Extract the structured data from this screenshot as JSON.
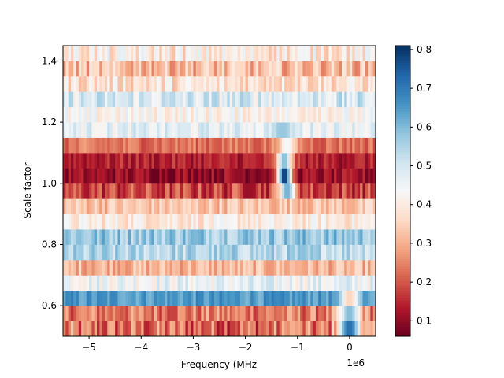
{
  "chart_data": {
    "type": "heatmap",
    "title": "",
    "xlabel": "Frequency (MHz",
    "ylabel": "Scale factor",
    "x_offset_text": "1e6",
    "xlim": [
      -5500000,
      500000
    ],
    "ylim": [
      0.5,
      1.45
    ],
    "x_ticks": [
      {
        "value": -5000000,
        "label": "−5"
      },
      {
        "value": -4000000,
        "label": "−4"
      },
      {
        "value": -3000000,
        "label": "−3"
      },
      {
        "value": -2000000,
        "label": "−2"
      },
      {
        "value": -1000000,
        "label": "−1"
      },
      {
        "value": 0,
        "label": "0"
      }
    ],
    "y_ticks": [
      {
        "value": 0.6,
        "label": "0.6"
      },
      {
        "value": 0.8,
        "label": "0.8"
      },
      {
        "value": 1.0,
        "label": "1.0"
      },
      {
        "value": 1.2,
        "label": "1.2"
      },
      {
        "value": 1.4,
        "label": "1.4"
      }
    ],
    "colormap": "RdBu",
    "colorbar": {
      "range": [
        0.06,
        0.81
      ],
      "ticks": [
        {
          "value": 0.1,
          "label": "0.1"
        },
        {
          "value": 0.2,
          "label": "0.2"
        },
        {
          "value": 0.3,
          "label": "0.3"
        },
        {
          "value": 0.4,
          "label": "0.4"
        },
        {
          "value": 0.5,
          "label": "0.5"
        },
        {
          "value": 0.6,
          "label": "0.6"
        },
        {
          "value": 0.7,
          "label": "0.7"
        },
        {
          "value": 0.8,
          "label": "0.8"
        }
      ]
    },
    "x_bins": 120,
    "rows": [
      {
        "y": 0.525,
        "base": 0.22,
        "noise": 0.11,
        "dips": [
          {
            "center": -1100000,
            "width": 150000,
            "value": 0.3
          }
        ],
        "peaks": [
          {
            "center": 0,
            "width": 220000,
            "value": 0.72
          }
        ]
      },
      {
        "y": 0.575,
        "base": 0.24,
        "noise": 0.08,
        "dips": [],
        "peaks": [
          {
            "center": 0,
            "width": 200000,
            "value": 0.6
          }
        ]
      },
      {
        "y": 0.625,
        "base": 0.65,
        "noise": 0.05,
        "dips": [
          {
            "center": 0,
            "width": 180000,
            "value": 0.35
          }
        ],
        "peaks": []
      },
      {
        "y": 0.675,
        "base": 0.46,
        "noise": 0.07,
        "dips": [],
        "peaks": []
      },
      {
        "y": 0.725,
        "base": 0.31,
        "noise": 0.06,
        "dips": [],
        "peaks": []
      },
      {
        "y": 0.775,
        "base": 0.54,
        "noise": 0.07,
        "dips": [],
        "peaks": []
      },
      {
        "y": 0.825,
        "base": 0.58,
        "noise": 0.07,
        "dips": [],
        "peaks": []
      },
      {
        "y": 0.875,
        "base": 0.4,
        "noise": 0.06,
        "dips": [],
        "peaks": []
      },
      {
        "y": 0.925,
        "base": 0.33,
        "noise": 0.06,
        "dips": [],
        "peaks": []
      },
      {
        "y": 0.975,
        "base": 0.18,
        "noise": 0.08,
        "dips": [],
        "peaks": [
          {
            "center": -1200000,
            "width": 160000,
            "value": 0.62
          }
        ]
      },
      {
        "y": 1.025,
        "base": 0.11,
        "noise": 0.05,
        "dips": [],
        "peaks": [
          {
            "center": -1250000,
            "width": 130000,
            "value": 0.8
          }
        ]
      },
      {
        "y": 1.075,
        "base": 0.14,
        "noise": 0.05,
        "dips": [],
        "peaks": [
          {
            "center": -1250000,
            "width": 150000,
            "value": 0.6
          }
        ]
      },
      {
        "y": 1.125,
        "base": 0.23,
        "noise": 0.05,
        "dips": [],
        "peaks": [
          {
            "center": -1200000,
            "width": 180000,
            "value": 0.44
          }
        ]
      },
      {
        "y": 1.175,
        "base": 0.47,
        "noise": 0.06,
        "dips": [],
        "peaks": [
          {
            "center": -1300000,
            "width": 200000,
            "value": 0.58
          }
        ]
      },
      {
        "y": 1.225,
        "base": 0.42,
        "noise": 0.06,
        "dips": [],
        "peaks": []
      },
      {
        "y": 1.275,
        "base": 0.49,
        "noise": 0.08,
        "dips": [],
        "peaks": []
      },
      {
        "y": 1.325,
        "base": 0.38,
        "noise": 0.07,
        "dips": [],
        "peaks": []
      },
      {
        "y": 1.375,
        "base": 0.32,
        "noise": 0.08,
        "dips": [],
        "peaks": []
      },
      {
        "y": 1.425,
        "base": 0.4,
        "noise": 0.08,
        "dips": [],
        "peaks": []
      }
    ]
  }
}
